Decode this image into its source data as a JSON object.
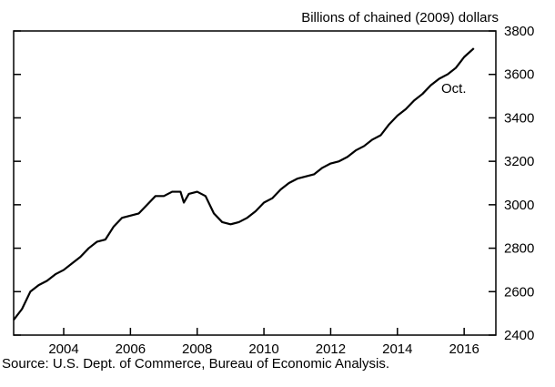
{
  "chart_data": {
    "type": "line",
    "y_axis_label": "Billions of chained (2009) dollars",
    "annotation": "Oct.",
    "source": "Source:  U.S. Dept. of Commerce, Bureau of Economic Analysis.",
    "xlim": [
      2003,
      2017.45
    ],
    "xticks": [
      {
        "value": 2004.5,
        "label": "2004"
      },
      {
        "value": 2006.5,
        "label": "2006"
      },
      {
        "value": 2008.5,
        "label": "2008"
      },
      {
        "value": 2010.5,
        "label": "2010"
      },
      {
        "value": 2012.5,
        "label": "2012"
      },
      {
        "value": 2014.5,
        "label": "2014"
      },
      {
        "value": 2016.5,
        "label": "2016"
      }
    ],
    "ylim": [
      2400,
      3800
    ],
    "yticks": [
      2400,
      2600,
      2800,
      3000,
      3200,
      3400,
      3600,
      3800
    ],
    "series": [
      {
        "color": "#000000",
        "x": [
          2003.0,
          2003.25,
          2003.5,
          2003.75,
          2004.0,
          2004.25,
          2004.5,
          2004.75,
          2005.0,
          2005.25,
          2005.5,
          2005.75,
          2006.0,
          2006.25,
          2006.5,
          2006.75,
          2007.0,
          2007.25,
          2007.5,
          2007.75,
          2008.0,
          2008.1,
          2008.25,
          2008.5,
          2008.75,
          2009.0,
          2009.25,
          2009.5,
          2009.75,
          2010.0,
          2010.25,
          2010.5,
          2010.75,
          2011.0,
          2011.25,
          2011.5,
          2011.75,
          2012.0,
          2012.25,
          2012.5,
          2012.75,
          2013.0,
          2013.25,
          2013.5,
          2013.75,
          2014.0,
          2014.25,
          2014.5,
          2014.75,
          2015.0,
          2015.25,
          2015.5,
          2015.75,
          2016.0,
          2016.25,
          2016.5,
          2016.79
        ],
        "values": [
          2470,
          2520,
          2600,
          2630,
          2650,
          2680,
          2700,
          2730,
          2760,
          2800,
          2830,
          2840,
          2900,
          2940,
          2950,
          2960,
          3000,
          3040,
          3040,
          3060,
          3060,
          3010,
          3050,
          3060,
          3040,
          2960,
          2920,
          2910,
          2920,
          2940,
          2970,
          3010,
          3030,
          3070,
          3100,
          3120,
          3130,
          3140,
          3170,
          3190,
          3200,
          3220,
          3250,
          3270,
          3300,
          3320,
          3370,
          3410,
          3440,
          3480,
          3510,
          3550,
          3580,
          3600,
          3630,
          3680,
          3720
        ]
      }
    ]
  }
}
